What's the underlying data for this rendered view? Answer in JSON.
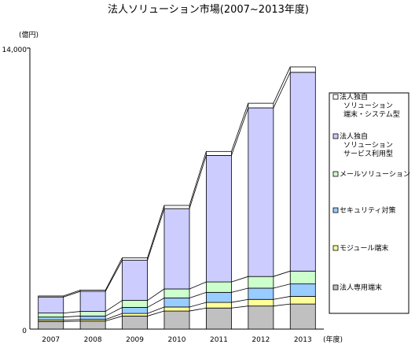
{
  "chart_data": {
    "type": "bar",
    "subtype": "stacked",
    "title": "法人ソリューション市場(2007~2013年度)",
    "ylabel": "(億円)",
    "xunit": "(年度)",
    "categories": [
      "2007",
      "2008",
      "2009",
      "2010",
      "2011",
      "2012",
      "2013"
    ],
    "ylim": [
      0,
      14000
    ],
    "yticks": [
      "0",
      "14,000"
    ],
    "connector_lines": true,
    "series": [
      {
        "name": "法人専用端末",
        "color": "#c0c0c0",
        "values": [
          380,
          400,
          650,
          900,
          1050,
          1150,
          1250
        ]
      },
      {
        "name": "モジュール端末",
        "color": "#ffff99",
        "values": [
          70,
          80,
          130,
          200,
          280,
          330,
          380
        ]
      },
      {
        "name": "セキュリティ対策",
        "color": "#99ccff",
        "values": [
          150,
          170,
          300,
          450,
          500,
          560,
          620
        ]
      },
      {
        "name": "メールソリューション",
        "color": "#ccffcc",
        "values": [
          200,
          230,
          350,
          450,
          520,
          580,
          640
        ]
      },
      {
        "name": "法人独自ソリューション\nサービス利用型",
        "color": "#ccccff",
        "values": [
          800,
          1000,
          2000,
          4000,
          6300,
          8400,
          9900
        ]
      },
      {
        "name": "法人独自ソリューション\n端末・システム型",
        "color": "#ffffff",
        "values": [
          50,
          60,
          120,
          160,
          200,
          230,
          270
        ]
      }
    ]
  },
  "legend": [
    {
      "lines": [
        "法人独自",
        "ソリューション",
        "端末・システム型"
      ],
      "color": "#ffffff"
    },
    {
      "lines": [
        "法人独自",
        "ソリューション",
        "サービス利用型"
      ],
      "color": "#ccccff"
    },
    {
      "lines": [
        "メールソリューション"
      ],
      "color": "#ccffcc"
    },
    {
      "lines": [
        "セキュリティ対策"
      ],
      "color": "#99ccff"
    },
    {
      "lines": [
        "モジュール端末"
      ],
      "color": "#ffff99"
    },
    {
      "lines": [
        "法人専用端末"
      ],
      "color": "#c0c0c0"
    }
  ]
}
